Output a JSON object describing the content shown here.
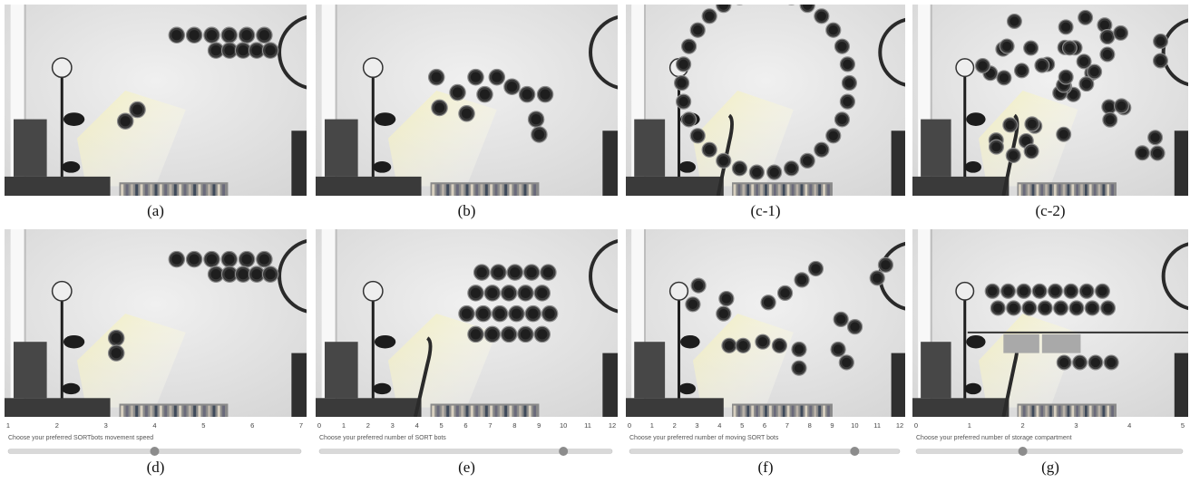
{
  "panels": [
    {
      "caption": "(a)"
    },
    {
      "caption": "(b)"
    },
    {
      "caption": "(c-1)"
    },
    {
      "caption": "(c-2)"
    },
    {
      "caption": "(d)"
    },
    {
      "caption": "(e)"
    },
    {
      "caption": "(f)"
    },
    {
      "caption": "(g)"
    }
  ],
  "sliders": [
    {
      "prompt": "Choose your preferred SORTbots movement speed",
      "range": [
        1,
        7
      ],
      "ticks": [
        1,
        2,
        3,
        4,
        5,
        6,
        7
      ],
      "value": 4
    },
    {
      "prompt": "Choose your preferred number of SORT bots",
      "range": [
        0,
        12
      ],
      "ticks": [
        0,
        1,
        2,
        3,
        4,
        5,
        6,
        7,
        8,
        9,
        10,
        11,
        12
      ],
      "value": 10
    },
    {
      "prompt": "Choose your preferred number of moving SORT bots",
      "range": [
        0,
        12
      ],
      "ticks": [
        0,
        1,
        2,
        3,
        4,
        5,
        6,
        7,
        8,
        9,
        10,
        11,
        12
      ],
      "value": 10
    },
    {
      "prompt": "Choose your preferred number of storage compartment",
      "range": [
        0,
        5
      ],
      "ticks": [
        0,
        1,
        2,
        3,
        4,
        5
      ],
      "value": 2
    }
  ]
}
